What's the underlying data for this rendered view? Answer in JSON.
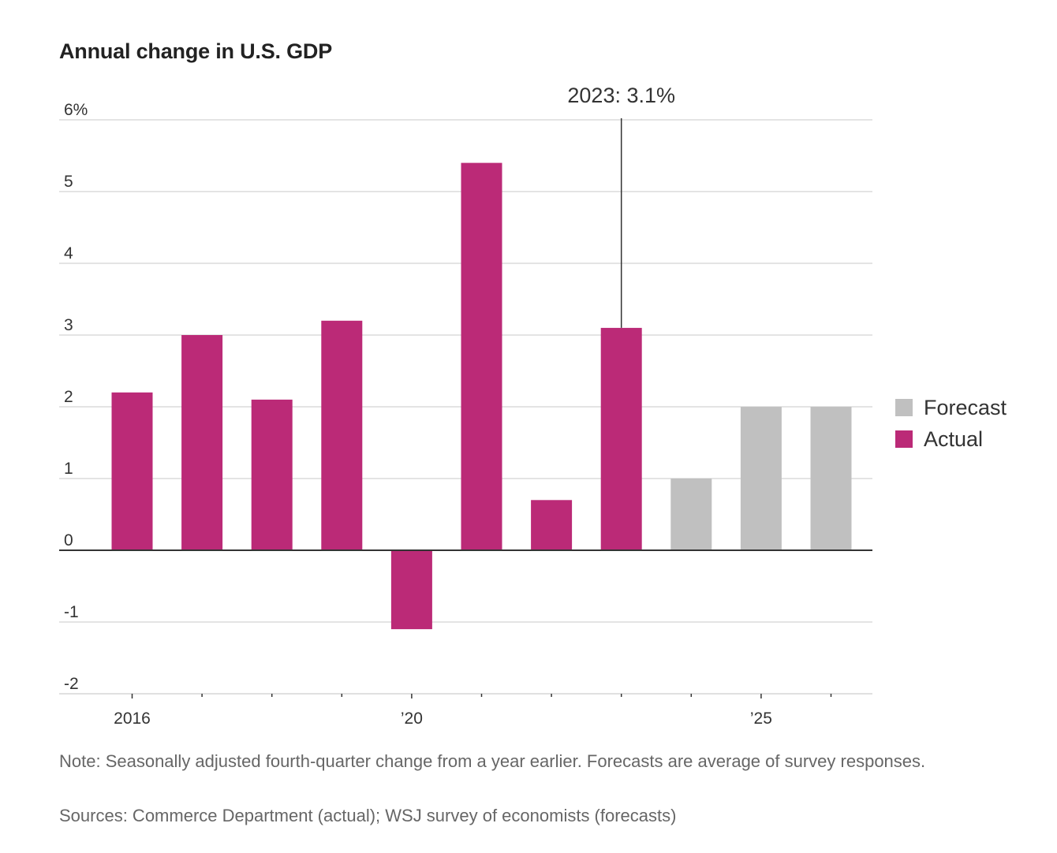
{
  "title": "Annual change in U.S. GDP",
  "chart_data": {
    "type": "bar",
    "categories": [
      2016,
      2017,
      2018,
      2019,
      2020,
      2021,
      2022,
      2023,
      2024,
      2025,
      2026
    ],
    "values": [
      2.2,
      3.0,
      2.1,
      3.2,
      -1.1,
      5.4,
      0.7,
      3.1,
      1.0,
      2.0,
      2.0
    ],
    "status": [
      "Actual",
      "Actual",
      "Actual",
      "Actual",
      "Actual",
      "Actual",
      "Actual",
      "Actual",
      "Forecast",
      "Forecast",
      "Forecast"
    ],
    "ylim": [
      -2,
      6
    ],
    "yticks": [
      {
        "value": 6,
        "label": "6%"
      },
      {
        "value": 5,
        "label": "5"
      },
      {
        "value": 4,
        "label": "4"
      },
      {
        "value": 3,
        "label": "3"
      },
      {
        "value": 2,
        "label": "2"
      },
      {
        "value": 1,
        "label": "1"
      },
      {
        "value": 0,
        "label": "0"
      },
      {
        "value": -1,
        "label": "-1"
      },
      {
        "value": -2,
        "label": "-2"
      }
    ],
    "xtick_labels": [
      {
        "year": 2016,
        "label": "2016"
      },
      {
        "year": 2020,
        "label": "’20"
      },
      {
        "year": 2025,
        "label": "’25"
      }
    ],
    "legend": [
      {
        "name": "Forecast",
        "color": "#c0c0c0"
      },
      {
        "name": "Actual",
        "color": "#bb2a77"
      }
    ],
    "legend_position": "right",
    "annotation": {
      "year": 2023,
      "text": "2023: 3.1%"
    },
    "grid": true
  },
  "note": "Note: Seasonally adjusted fourth-quarter change from a year earlier. Forecasts are average of survey responses.",
  "sources": "Sources: Commerce Department (actual); WSJ survey of economists (forecasts)"
}
